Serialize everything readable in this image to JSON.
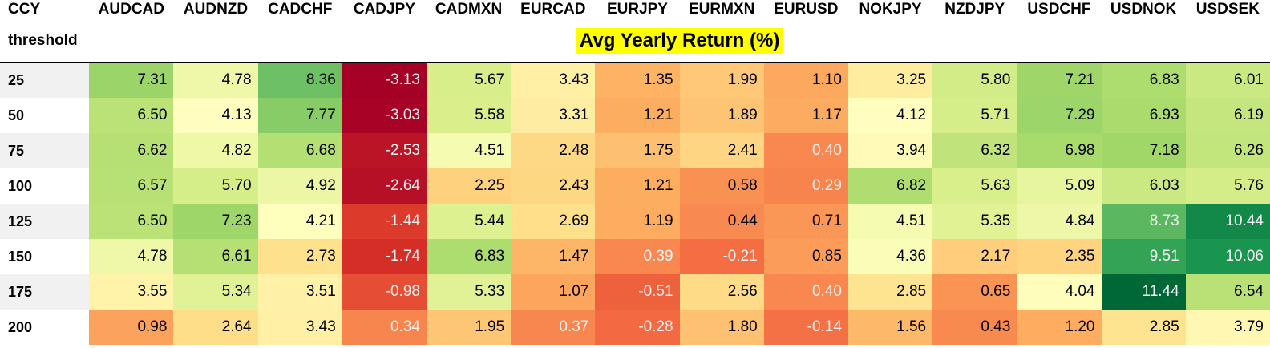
{
  "table": {
    "index_header": "CCY",
    "row_header": "threshold",
    "title": "Avg Yearly Return (%)"
  },
  "chart_data": {
    "type": "heatmap",
    "title": "Avg Yearly Return (%)",
    "columns": [
      "AUDCAD",
      "AUDNZD",
      "CADCHF",
      "CADJPY",
      "CADMXN",
      "EURCAD",
      "EURJPY",
      "EURMXN",
      "EURUSD",
      "NOKJPY",
      "NZDJPY",
      "USDCHF",
      "USDNOK",
      "USDSEK"
    ],
    "rows": [
      "25",
      "50",
      "75",
      "100",
      "125",
      "150",
      "175",
      "200"
    ],
    "values": [
      [
        "7.31",
        "4.78",
        "8.36",
        "-3.13",
        "5.67",
        "3.43",
        "1.35",
        "1.99",
        "1.10",
        "3.25",
        "5.80",
        "7.21",
        "6.83",
        "6.01"
      ],
      [
        "6.50",
        "4.13",
        "7.77",
        "-3.03",
        "5.58",
        "3.31",
        "1.21",
        "1.89",
        "1.17",
        "4.12",
        "5.71",
        "7.29",
        "6.93",
        "6.19"
      ],
      [
        "6.62",
        "4.82",
        "6.68",
        "-2.53",
        "4.51",
        "2.48",
        "1.75",
        "2.41",
        "0.40",
        "3.94",
        "6.32",
        "6.98",
        "7.18",
        "6.26"
      ],
      [
        "6.57",
        "5.70",
        "4.92",
        "-2.64",
        "2.25",
        "2.43",
        "1.21",
        "0.58",
        "0.29",
        "6.82",
        "5.63",
        "5.09",
        "6.03",
        "5.76"
      ],
      [
        "6.50",
        "7.23",
        "4.21",
        "-1.44",
        "5.44",
        "2.69",
        "1.19",
        "0.44",
        "0.71",
        "4.51",
        "5.35",
        "4.84",
        "8.73",
        "10.44"
      ],
      [
        "4.78",
        "6.61",
        "2.73",
        "-1.74",
        "6.83",
        "1.47",
        "0.39",
        "-0.21",
        "0.85",
        "4.36",
        "2.17",
        "2.35",
        "9.51",
        "10.06"
      ],
      [
        "3.55",
        "5.34",
        "3.51",
        "-0.98",
        "5.33",
        "1.07",
        "-0.51",
        "2.56",
        "0.40",
        "2.85",
        "0.65",
        "4.04",
        "11.44",
        "6.54"
      ],
      [
        "0.98",
        "2.64",
        "3.43",
        "0.34",
        "1.95",
        "0.37",
        "-0.28",
        "1.80",
        "-0.14",
        "1.56",
        "0.43",
        "1.20",
        "2.85",
        "3.79"
      ]
    ],
    "colormap": "RdYlGn",
    "value_range": [
      -3.13,
      11.44
    ]
  }
}
